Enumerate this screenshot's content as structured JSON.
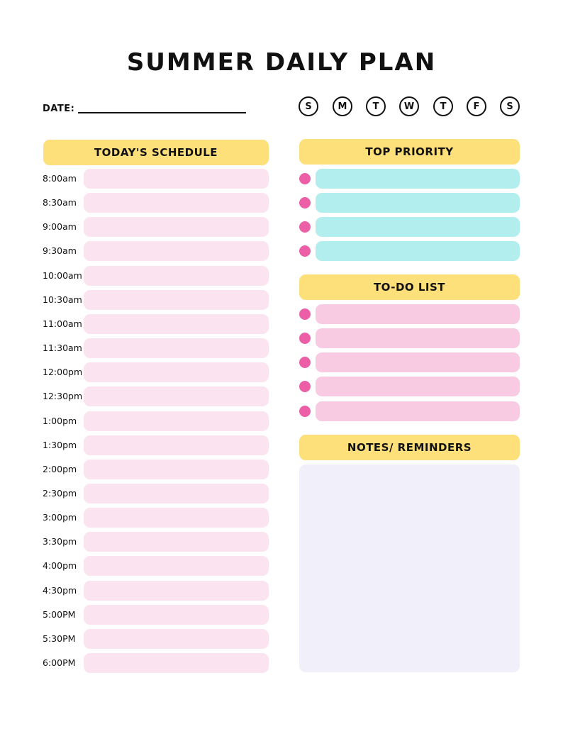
{
  "title": "SUMMER DAILY PLAN",
  "date_label": "DATE:",
  "weekdays": [
    "S",
    "M",
    "T",
    "W",
    "T",
    "F",
    "S"
  ],
  "schedule": {
    "header": "TODAY'S SCHEDULE",
    "times": [
      "8:00am",
      "8:30am",
      "9:00am",
      "9:30am",
      "10:00am",
      "10:30am",
      "11:00am",
      "11:30am",
      "12:00pm",
      "12:30pm",
      "1:00pm",
      "1:30pm",
      "2:00pm",
      "2:30pm",
      "3:00pm",
      "3:30pm",
      "4:00pm",
      "4:30pm",
      "5:00PM",
      "5:30PM",
      "6:00PM"
    ]
  },
  "top_priority": {
    "header": "TOP PRIORITY",
    "item_count": 4
  },
  "todo": {
    "header": "TO-DO LIST",
    "item_count": 5
  },
  "notes": {
    "header": "NOTES/ REMINDERS"
  },
  "colors": {
    "header": "#fde07a",
    "schedule_slot": "#fbe4ef",
    "priority_bar": "#b2eeee",
    "todo_bar": "#f9cbe2",
    "bullet": "#ec5fa6",
    "notes_box": "#f1eff9"
  }
}
